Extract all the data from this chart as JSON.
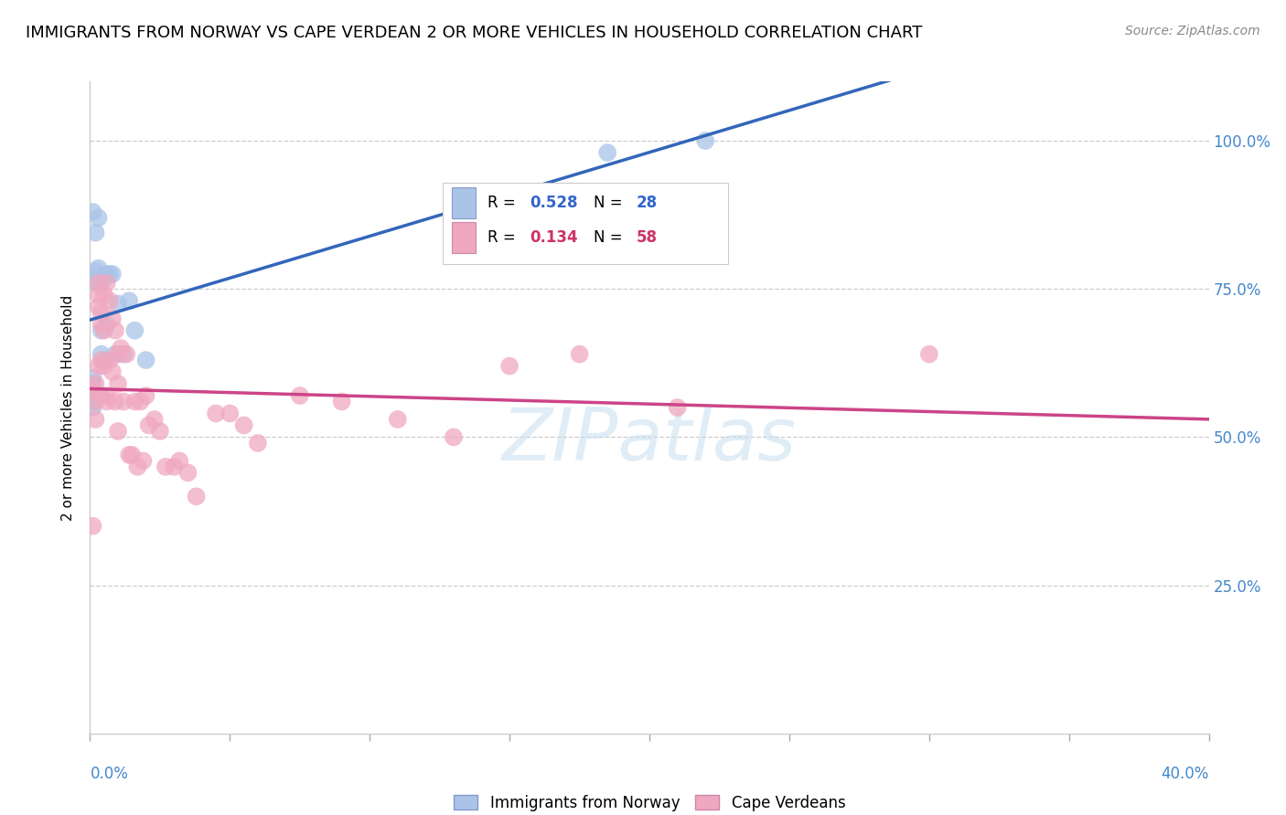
{
  "title": "IMMIGRANTS FROM NORWAY VS CAPE VERDEAN 2 OR MORE VEHICLES IN HOUSEHOLD CORRELATION CHART",
  "source": "Source: ZipAtlas.com",
  "ylabel": "2 or more Vehicles in Household",
  "norway_R": 0.528,
  "norway_N": 28,
  "cv_R": 0.134,
  "cv_N": 58,
  "norway_color": "#aac4e8",
  "norway_line_color": "#3366bb",
  "cv_color": "#f0a8c0",
  "cv_line_color": "#cc4488",
  "legend_norway_text_color": "#3366cc",
  "legend_cv_text_color": "#cc3366",
  "right_tick_color": "#4488cc",
  "bottom_tick_color": "#4488cc",
  "norway_x": [
    0.001,
    0.001,
    0.002,
    0.003,
    0.001,
    0.001,
    0.001,
    0.001,
    0.002,
    0.002,
    0.003,
    0.003,
    0.004,
    0.004,
    0.004,
    0.005,
    0.006,
    0.006,
    0.007,
    0.008,
    0.009,
    0.01,
    0.012,
    0.014,
    0.016,
    0.02,
    0.185,
    0.22
  ],
  "norway_y": [
    0.6,
    0.88,
    0.845,
    0.87,
    0.56,
    0.575,
    0.59,
    0.55,
    0.78,
    0.76,
    0.785,
    0.77,
    0.76,
    0.68,
    0.64,
    0.63,
    0.69,
    0.775,
    0.775,
    0.775,
    0.64,
    0.725,
    0.64,
    0.73,
    0.68,
    0.63,
    0.98,
    1.0
  ],
  "cv_x": [
    0.001,
    0.001,
    0.002,
    0.002,
    0.002,
    0.003,
    0.003,
    0.003,
    0.003,
    0.004,
    0.004,
    0.004,
    0.004,
    0.005,
    0.005,
    0.005,
    0.006,
    0.006,
    0.006,
    0.007,
    0.007,
    0.008,
    0.008,
    0.009,
    0.009,
    0.01,
    0.01,
    0.01,
    0.011,
    0.012,
    0.013,
    0.014,
    0.015,
    0.016,
    0.017,
    0.018,
    0.019,
    0.02,
    0.021,
    0.023,
    0.025,
    0.027,
    0.03,
    0.032,
    0.035,
    0.038,
    0.045,
    0.05,
    0.055,
    0.06,
    0.075,
    0.09,
    0.11,
    0.13,
    0.15,
    0.175,
    0.21,
    0.3
  ],
  "cv_y": [
    0.35,
    0.58,
    0.59,
    0.56,
    0.53,
    0.76,
    0.74,
    0.72,
    0.62,
    0.71,
    0.69,
    0.63,
    0.57,
    0.74,
    0.68,
    0.62,
    0.76,
    0.57,
    0.56,
    0.73,
    0.63,
    0.7,
    0.61,
    0.68,
    0.56,
    0.64,
    0.59,
    0.51,
    0.65,
    0.56,
    0.64,
    0.47,
    0.47,
    0.56,
    0.45,
    0.56,
    0.46,
    0.57,
    0.52,
    0.53,
    0.51,
    0.45,
    0.45,
    0.46,
    0.44,
    0.4,
    0.54,
    0.54,
    0.52,
    0.49,
    0.57,
    0.56,
    0.53,
    0.5,
    0.62,
    0.64,
    0.55,
    0.64
  ],
  "xlim": [
    0.0,
    0.4
  ],
  "ylim": [
    0.0,
    1.1
  ],
  "y_tick_vals": [
    0.25,
    0.5,
    0.75,
    1.0
  ],
  "y_tick_labels": [
    "25.0%",
    "50.0%",
    "75.0%",
    "100.0%"
  ],
  "background_color": "#ffffff",
  "grid_color": "#cccccc",
  "title_fontsize": 13,
  "source_fontsize": 10,
  "axis_label_fontsize": 11,
  "tick_fontsize": 12
}
